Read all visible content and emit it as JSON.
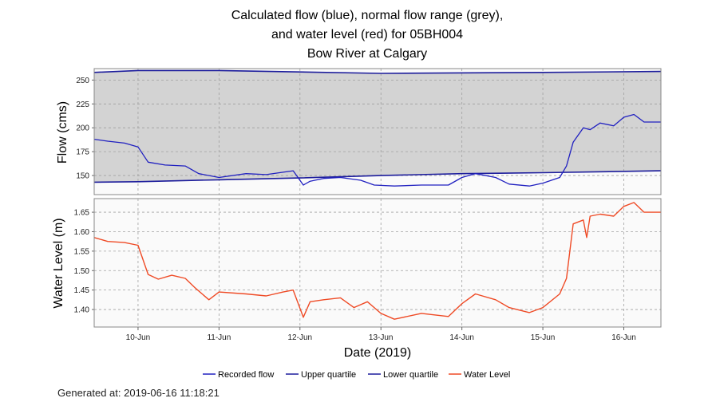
{
  "title_lines": [
    "Calculated flow (blue), normal flow range (grey),",
    "and water level (red) for 05BH004",
    "Bow River at Calgary"
  ],
  "generated": "Generated at: 2019-06-16 11:18:21",
  "colors": {
    "flow": "#2020c0",
    "quartile": "#1c1c9c",
    "level": "#ef4a25",
    "range_fill": "#d3d3d3",
    "grid": "#a0a0a0",
    "panel_border": "#888888"
  },
  "chart_data": [
    {
      "type": "line",
      "ylabel": "Flow (cms)",
      "xlabel": "",
      "ylim": [
        130,
        262
      ],
      "y_ticks": [
        "150",
        "175",
        "200",
        "225",
        "250"
      ],
      "shaded_range": "between Lower quartile and Upper quartile",
      "grid": true,
      "series": [
        {
          "name": "Upper quartile",
          "x": [
            "2019-06-09 11:00",
            "2019-06-10 00:00",
            "2019-06-11 00:00",
            "2019-06-13 00:00",
            "2019-06-15 00:00",
            "2019-06-16 11:00"
          ],
          "values": [
            258,
            260,
            260,
            257,
            258,
            259
          ]
        },
        {
          "name": "Lower quartile",
          "x": [
            "2019-06-09 11:00",
            "2019-06-10 00:00",
            "2019-06-11 00:00",
            "2019-06-12 00:00",
            "2019-06-13 00:00",
            "2019-06-14 00:00",
            "2019-06-15 00:00",
            "2019-06-16 11:00"
          ],
          "values": [
            143,
            143.5,
            145.5,
            147.5,
            150,
            152,
            153,
            155
          ]
        },
        {
          "name": "Recorded flow",
          "x": [
            "2019-06-09 11:00",
            "2019-06-09 15:00",
            "2019-06-09 20:00",
            "2019-06-10 00:00",
            "2019-06-10 03:00",
            "2019-06-10 08:00",
            "2019-06-10 14:00",
            "2019-06-10 18:00",
            "2019-06-11 00:00",
            "2019-06-11 08:00",
            "2019-06-11 14:00",
            "2019-06-11 22:00",
            "2019-06-12 01:00",
            "2019-06-12 03:00",
            "2019-06-12 07:00",
            "2019-06-12 12:00",
            "2019-06-12 18:00",
            "2019-06-12 22:00",
            "2019-06-13 04:00",
            "2019-06-13 12:00",
            "2019-06-13 20:00",
            "2019-06-14 00:00",
            "2019-06-14 04:00",
            "2019-06-14 10:00",
            "2019-06-14 14:00",
            "2019-06-14 20:00",
            "2019-06-15 00:00",
            "2019-06-15 05:00",
            "2019-06-15 07:00",
            "2019-06-15 09:00",
            "2019-06-15 12:00",
            "2019-06-15 14:00",
            "2019-06-15 17:00",
            "2019-06-15 21:00",
            "2019-06-16 00:00",
            "2019-06-16 03:00",
            "2019-06-16 06:00",
            "2019-06-16 11:00"
          ],
          "values": [
            188,
            186,
            184,
            180,
            164,
            161,
            160,
            152,
            148,
            152,
            151,
            155,
            140,
            144,
            147,
            148,
            145,
            140,
            139,
            140,
            140,
            148,
            152,
            148,
            141,
            139,
            142,
            148,
            160,
            185,
            200,
            198,
            205,
            202,
            211,
            214,
            206,
            206
          ]
        }
      ]
    },
    {
      "type": "line",
      "ylabel": "Water Level (m)",
      "xlabel": "Date (2019)",
      "ylim": [
        1.355,
        1.685
      ],
      "y_ticks": [
        "1.40",
        "1.45",
        "1.50",
        "1.55",
        "1.60",
        "1.65"
      ],
      "x_ticks": [
        "10-Jun",
        "11-Jun",
        "12-Jun",
        "13-Jun",
        "14-Jun",
        "15-Jun",
        "16-Jun"
      ],
      "grid": true,
      "series": [
        {
          "name": "Water Level",
          "x": [
            "2019-06-09 11:00",
            "2019-06-09 15:00",
            "2019-06-09 20:00",
            "2019-06-10 00:00",
            "2019-06-10 03:00",
            "2019-06-10 06:00",
            "2019-06-10 10:00",
            "2019-06-10 14:00",
            "2019-06-10 17:00",
            "2019-06-10 21:00",
            "2019-06-11 00:00",
            "2019-06-11 08:00",
            "2019-06-11 14:00",
            "2019-06-11 19:00",
            "2019-06-11 22:00",
            "2019-06-12 01:00",
            "2019-06-12 03:00",
            "2019-06-12 07:00",
            "2019-06-12 12:00",
            "2019-06-12 16:00",
            "2019-06-12 20:00",
            "2019-06-13 00:00",
            "2019-06-13 04:00",
            "2019-06-13 12:00",
            "2019-06-13 20:00",
            "2019-06-14 00:00",
            "2019-06-14 04:00",
            "2019-06-14 10:00",
            "2019-06-14 14:00",
            "2019-06-14 20:00",
            "2019-06-15 00:00",
            "2019-06-15 05:00",
            "2019-06-15 07:00",
            "2019-06-15 09:00",
            "2019-06-15 12:00",
            "2019-06-15 13:00",
            "2019-06-15 14:00",
            "2019-06-15 17:00",
            "2019-06-15 21:00",
            "2019-06-16 00:00",
            "2019-06-16 03:00",
            "2019-06-16 06:00",
            "2019-06-16 11:00"
          ],
          "values": [
            1.585,
            1.575,
            1.572,
            1.565,
            1.49,
            1.478,
            1.488,
            1.48,
            1.455,
            1.425,
            1.445,
            1.44,
            1.435,
            1.445,
            1.45,
            1.38,
            1.42,
            1.425,
            1.43,
            1.405,
            1.42,
            1.39,
            1.375,
            1.39,
            1.382,
            1.415,
            1.44,
            1.425,
            1.405,
            1.392,
            1.405,
            1.44,
            1.48,
            1.62,
            1.63,
            1.585,
            1.64,
            1.645,
            1.64,
            1.665,
            1.675,
            1.65,
            1.65
          ]
        }
      ]
    }
  ],
  "legend": [
    {
      "label": "Recorded flow",
      "color": "#2020c0"
    },
    {
      "label": "Upper quartile",
      "color": "#1c1c9c"
    },
    {
      "label": "Lower quartile",
      "color": "#1c1c9c"
    },
    {
      "label": "Water Level",
      "color": "#ef4a25"
    }
  ]
}
